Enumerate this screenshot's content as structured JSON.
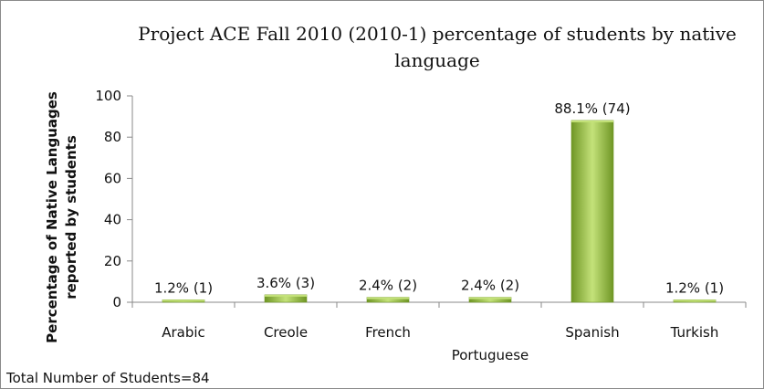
{
  "chart_data": {
    "type": "bar",
    "title_lines": [
      "Project ACE Fall 2010 (2010-1)  percentage of students by native",
      "language"
    ],
    "ylabel_lines": [
      "Percentage of Native Languages",
      "reported by  students"
    ],
    "xlabel": "",
    "ylim": [
      0,
      100
    ],
    "yticks": [
      "0",
      "20",
      "40",
      "60",
      "80",
      "100"
    ],
    "categories": [
      "Arabic",
      "Creole",
      "French",
      "Portuguese",
      "Spanish",
      "Turkish"
    ],
    "values": [
      1.2,
      3.6,
      2.4,
      2.4,
      88.1,
      1.2
    ],
    "data_labels": [
      "1.2% (1)",
      "3.6% (3)",
      "2.4% (2)",
      "2.4% (2)",
      "88.1% (74)",
      "1.2% (1)"
    ],
    "footnote": "Total Number of Students=84",
    "grid": false,
    "legend": "none",
    "colors": {
      "bar_light": "#c4e27a",
      "bar_mid": "#93bf3c",
      "bar_dark": "#6f9625",
      "axis": "#8a8a8a"
    }
  }
}
